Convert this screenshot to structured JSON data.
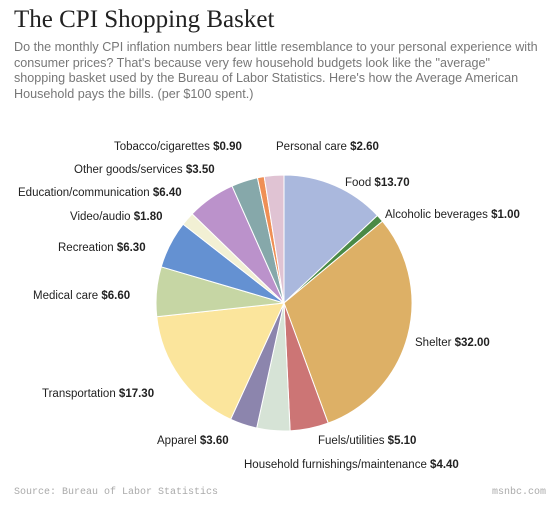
{
  "header": {
    "title": "The CPI Shopping Basket",
    "subtitle": "Do the monthly CPI inflation numbers bear little resemblance to your personal experience with consumer prices? That's because very few household budgets look like the \"average\" shopping basket used by the Bureau of Labor Statistics. Here's how the Average American Household pays the bills. (per $100 spent.)"
  },
  "footer": {
    "source": "Source: Bureau of Labor Statistics",
    "brand": "msnbc.com"
  },
  "chart_data": {
    "type": "pie",
    "unit": "$ per $100 spent",
    "slices": [
      {
        "label": "Food",
        "value_text": "$13.70",
        "value": 13.7,
        "color": "#aab8dd"
      },
      {
        "label": "Alcoholic beverages",
        "value_text": "$1.00",
        "value": 1.0,
        "color": "#4a8a46"
      },
      {
        "label": "Shelter",
        "value_text": "$32.00",
        "value": 32.0,
        "color": "#ddb066"
      },
      {
        "label": "Fuels/utilities",
        "value_text": "$5.10",
        "value": 5.1,
        "color": "#cc7575"
      },
      {
        "label": "Household furnishings/maintenance",
        "value_text": "$4.40",
        "value": 4.4,
        "color": "#d6e3d6"
      },
      {
        "label": "Apparel",
        "value_text": "$3.60",
        "value": 3.6,
        "color": "#8c85ad"
      },
      {
        "label": "Transportation",
        "value_text": "$17.30",
        "value": 17.3,
        "color": "#fbe59c"
      },
      {
        "label": "Medical care",
        "value_text": "$6.60",
        "value": 6.6,
        "color": "#c6d6a4"
      },
      {
        "label": "Recreation",
        "value_text": "$6.30",
        "value": 6.3,
        "color": "#6491d2"
      },
      {
        "label": "Video/audio",
        "value_text": "$1.80",
        "value": 1.8,
        "color": "#f2f0d4"
      },
      {
        "label": "Education/communication",
        "value_text": "$6.40",
        "value": 6.4,
        "color": "#bb92cb"
      },
      {
        "label": "Other goods/services",
        "value_text": "$3.50",
        "value": 3.5,
        "color": "#86a8aa"
      },
      {
        "label": "Tobacco/cigarettes",
        "value_text": "$0.90",
        "value": 0.9,
        "color": "#ef8f55"
      },
      {
        "label": "Personal care",
        "value_text": "$2.60",
        "value": 2.6,
        "color": "#e0c3d3"
      }
    ]
  }
}
